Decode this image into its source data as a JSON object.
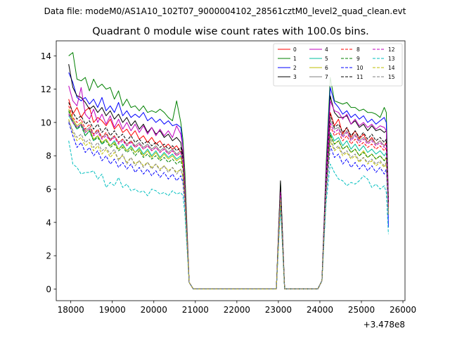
{
  "figure": {
    "suptitle": "Data file: modeM0/AS1A10_102T07_9000004102_28561cztM0_level2_quad_clean.evt"
  },
  "chart_data": {
    "type": "line",
    "title": "Quadrant 0 module wise count rates with 100.0s bins.",
    "xlabel": "",
    "ylabel": "",
    "x_offset_label": "+3.478e8",
    "xlim": [
      17650,
      26050
    ],
    "ylim": [
      -0.7,
      14.9
    ],
    "xticks": [
      18000,
      19000,
      20000,
      21000,
      22000,
      23000,
      24000,
      25000,
      26000
    ],
    "yticks": [
      0,
      2,
      4,
      6,
      8,
      10,
      12,
      14
    ],
    "legend_location": "upper right",
    "legend_columns": 4,
    "x": [
      17950,
      18050,
      18150,
      18250,
      18350,
      18450,
      18550,
      18650,
      18750,
      18850,
      18950,
      19050,
      19150,
      19250,
      19350,
      19450,
      19550,
      19650,
      19750,
      19850,
      19950,
      20050,
      20150,
      20250,
      20350,
      20450,
      20550,
      20650,
      20700,
      20750,
      20850,
      20950,
      21050,
      22950,
      23050,
      23150,
      23250,
      23950,
      24050,
      24150,
      24250,
      24350,
      24450,
      24550,
      24650,
      24750,
      24850,
      24950,
      25050,
      25150,
      25250,
      25350,
      25450,
      25550,
      25600,
      25650
    ],
    "series": [
      {
        "name": "0",
        "color": "#ff0000",
        "style": "solid",
        "values": [
          11.4,
          10.5,
          10.9,
          10.3,
          10.7,
          10.9,
          10.0,
          10.3,
          10.1,
          9.8,
          10.2,
          9.6,
          9.9,
          9.4,
          9.6,
          9.2,
          9.5,
          9.0,
          9.2,
          8.8,
          9.1,
          8.7,
          8.9,
          8.5,
          8.7,
          8.4,
          8.6,
          8.2,
          8.4,
          6.5,
          0.4,
          0,
          0,
          0,
          5.8,
          0,
          0,
          0,
          0.5,
          6.5,
          10.6,
          9.8,
          10.2,
          9.3,
          9.7,
          9.1,
          9.5,
          9.0,
          9.3,
          8.8,
          9.1,
          8.7,
          8.9,
          8.6,
          8.8,
          5.2
        ]
      },
      {
        "name": "1",
        "color": "#008000",
        "style": "solid",
        "values": [
          14.0,
          14.2,
          12.6,
          12.5,
          12.7,
          11.9,
          12.6,
          12.1,
          12.3,
          12.0,
          12.1,
          11.4,
          11.9,
          11.0,
          11.4,
          10.9,
          11.0,
          10.7,
          11.0,
          10.6,
          10.7,
          10.6,
          10.8,
          10.6,
          10.3,
          10.1,
          11.3,
          10.0,
          9.0,
          7.0,
          0.4,
          0,
          0,
          0,
          6.4,
          0,
          0,
          0,
          0.5,
          7.5,
          12.7,
          11.3,
          11.2,
          11.1,
          11.2,
          10.9,
          10.9,
          10.7,
          10.8,
          10.6,
          10.6,
          10.5,
          10.3,
          10.9,
          10.6,
          5.5
        ]
      },
      {
        "name": "2",
        "color": "#0000ff",
        "style": "solid",
        "values": [
          13.0,
          12.4,
          11.5,
          11.3,
          11.5,
          11.1,
          11.4,
          10.9,
          11.5,
          10.7,
          11.0,
          10.6,
          11.2,
          10.4,
          10.7,
          10.3,
          10.5,
          10.3,
          10.6,
          10.1,
          10.3,
          10.0,
          10.2,
          9.9,
          10.1,
          9.8,
          9.9,
          9.7,
          8.5,
          6.0,
          0.4,
          0,
          0,
          0,
          6.0,
          0,
          0,
          0,
          0.5,
          7.0,
          12.1,
          11.2,
          10.9,
          10.5,
          10.7,
          10.3,
          10.5,
          10.2,
          10.4,
          10.0,
          10.2,
          9.9,
          10.1,
          10.3,
          10.0,
          3.7
        ]
      },
      {
        "name": "3",
        "color": "#000000",
        "style": "solid",
        "values": [
          13.5,
          12.1,
          11.6,
          11.5,
          11.2,
          10.8,
          11.0,
          10.6,
          10.9,
          10.4,
          10.7,
          10.2,
          10.5,
          10.0,
          10.3,
          9.8,
          10.1,
          9.6,
          9.9,
          9.4,
          9.7,
          9.3,
          9.5,
          9.1,
          9.3,
          8.9,
          9.1,
          8.8,
          8.0,
          6.2,
          0.4,
          0,
          0,
          0,
          6.5,
          0,
          0,
          0,
          0.5,
          7.0,
          11.6,
          10.6,
          10.3,
          10.3,
          10.4,
          9.9,
          10.1,
          9.7,
          9.9,
          9.5,
          9.8,
          9.5,
          9.6,
          9.4,
          9.5,
          5.2
        ]
      },
      {
        "name": "4",
        "color": "#bf00bf",
        "style": "solid",
        "values": [
          12.2,
          11.3,
          11.0,
          12.1,
          10.5,
          10.2,
          10.8,
          10.0,
          10.5,
          9.9,
          10.4,
          9.7,
          10.2,
          9.6,
          10.0,
          9.5,
          9.9,
          9.4,
          9.8,
          9.3,
          9.7,
          9.2,
          9.6,
          9.2,
          9.5,
          9.1,
          9.8,
          9.3,
          8.5,
          6.3,
          0.4,
          0,
          0,
          0,
          5.9,
          0,
          0,
          0,
          0.5,
          7.0,
          11.3,
          10.7,
          10.6,
          10.2,
          10.5,
          9.9,
          10.2,
          9.8,
          10.0,
          9.7,
          9.9,
          9.6,
          9.8,
          9.7,
          9.5,
          5.4
        ]
      },
      {
        "name": "5",
        "color": "#00bf9f",
        "style": "solid",
        "values": [
          10.4,
          10.0,
          9.6,
          9.9,
          9.2,
          9.5,
          8.9,
          9.2,
          8.7,
          9.0,
          8.6,
          8.9,
          8.4,
          8.7,
          8.3,
          8.6,
          8.2,
          8.5,
          8.1,
          8.4,
          8.0,
          8.3,
          7.9,
          8.2,
          7.9,
          8.1,
          7.8,
          8.0,
          7.5,
          5.8,
          0.4,
          0,
          0,
          0,
          5.6,
          0,
          0,
          0,
          0.5,
          6.2,
          9.4,
          8.9,
          9.1,
          8.6,
          8.9,
          8.4,
          8.7,
          8.3,
          8.6,
          8.2,
          8.4,
          8.1,
          8.3,
          8.0,
          8.2,
          4.8
        ]
      },
      {
        "name": "6",
        "color": "#bfbf00",
        "style": "solid",
        "values": [
          10.8,
          10.2,
          9.8,
          10.0,
          9.4,
          9.6,
          9.0,
          9.2,
          8.8,
          9.0,
          8.6,
          8.8,
          8.4,
          8.6,
          8.3,
          8.5,
          8.2,
          8.4,
          8.0,
          8.3,
          7.9,
          8.2,
          7.8,
          8.1,
          7.8,
          8.0,
          7.7,
          7.9,
          7.4,
          5.7,
          0.4,
          0,
          0,
          0,
          5.5,
          0,
          0,
          0,
          0.5,
          6.0,
          9.2,
          8.7,
          8.9,
          8.4,
          8.6,
          8.2,
          8.4,
          8.0,
          8.3,
          7.9,
          8.1,
          7.8,
          8.0,
          7.7,
          7.9,
          4.7
        ]
      },
      {
        "name": "7",
        "color": "#808080",
        "style": "solid",
        "values": [
          10.6,
          10.1,
          9.7,
          9.9,
          9.5,
          9.7,
          9.3,
          9.5,
          9.1,
          9.3,
          9.0,
          9.2,
          8.8,
          9.0,
          8.7,
          8.9,
          8.6,
          8.8,
          8.5,
          8.7,
          8.4,
          8.6,
          8.3,
          8.5,
          8.2,
          8.4,
          8.1,
          8.3,
          7.8,
          6.0,
          0.4,
          0,
          0,
          0,
          5.9,
          0,
          0,
          0,
          0.5,
          6.5,
          10.2,
          9.6,
          9.7,
          9.2,
          9.5,
          9.0,
          9.3,
          8.9,
          9.1,
          8.8,
          9.0,
          8.7,
          8.9,
          8.6,
          8.7,
          5.0
        ]
      },
      {
        "name": "8",
        "color": "#ff0000",
        "style": "dashed",
        "values": [
          11.0,
          10.3,
          10.0,
          10.2,
          9.6,
          9.9,
          9.3,
          9.6,
          9.1,
          9.4,
          8.9,
          9.2,
          8.8,
          9.0,
          8.6,
          8.9,
          8.5,
          8.7,
          8.4,
          8.6,
          8.3,
          8.5,
          8.2,
          8.4,
          8.1,
          8.3,
          8.0,
          8.2,
          7.6,
          5.9,
          0.4,
          0,
          0,
          0,
          5.7,
          0,
          0,
          0,
          0.5,
          6.3,
          9.8,
          9.2,
          9.4,
          8.9,
          9.2,
          8.7,
          9.0,
          8.6,
          8.8,
          8.5,
          8.7,
          8.4,
          8.6,
          8.3,
          8.5,
          4.9
        ]
      },
      {
        "name": "9",
        "color": "#008000",
        "style": "dashed",
        "values": [
          10.7,
          10.0,
          9.6,
          9.8,
          9.2,
          9.5,
          8.9,
          9.1,
          8.7,
          8.9,
          8.5,
          8.7,
          8.3,
          8.5,
          8.2,
          8.4,
          8.0,
          8.3,
          7.9,
          8.1,
          7.8,
          8.0,
          7.7,
          7.9,
          7.6,
          7.8,
          7.5,
          7.7,
          7.2,
          5.6,
          0.4,
          0,
          0,
          0,
          5.4,
          0,
          0,
          0,
          0.5,
          6.0,
          9.3,
          8.7,
          8.9,
          8.4,
          8.6,
          8.2,
          8.4,
          8.0,
          8.2,
          7.9,
          8.1,
          7.8,
          8.0,
          7.7,
          7.9,
          4.6
        ]
      },
      {
        "name": "10",
        "color": "#0000ff",
        "style": "dashed",
        "values": [
          10.0,
          9.2,
          8.5,
          8.8,
          8.2,
          8.5,
          8.0,
          8.3,
          7.7,
          8.0,
          7.5,
          7.8,
          7.3,
          7.6,
          7.2,
          7.5,
          7.0,
          7.3,
          6.9,
          7.2,
          6.8,
          7.1,
          6.7,
          7.0,
          6.6,
          6.9,
          6.5,
          6.8,
          6.4,
          5.0,
          0.4,
          0,
          0,
          0,
          5.2,
          0,
          0,
          0,
          0.5,
          5.6,
          8.6,
          7.9,
          8.1,
          7.5,
          7.8,
          7.3,
          7.6,
          7.2,
          7.5,
          7.1,
          7.4,
          7.0,
          7.3,
          6.9,
          7.2,
          4.3
        ]
      },
      {
        "name": "11",
        "color": "#000000",
        "style": "dashed",
        "values": [
          11.2,
          10.6,
          10.2,
          10.4,
          9.9,
          10.1,
          9.6,
          9.9,
          9.4,
          9.7,
          9.2,
          9.5,
          9.1,
          9.3,
          8.9,
          9.2,
          8.8,
          9.0,
          8.7,
          8.9,
          8.6,
          8.8,
          8.5,
          8.7,
          8.4,
          8.6,
          8.3,
          8.5,
          7.9,
          6.1,
          0.4,
          0,
          0,
          0,
          6.1,
          0,
          0,
          0,
          0.5,
          6.6,
          10.5,
          9.7,
          9.9,
          9.4,
          9.7,
          9.2,
          9.5,
          9.1,
          9.4,
          9.0,
          9.3,
          8.9,
          9.1,
          8.8,
          9.0,
          5.1
        ]
      },
      {
        "name": "12",
        "color": "#bf00bf",
        "style": "dashed",
        "values": [
          10.5,
          10.0,
          9.7,
          9.9,
          9.4,
          9.6,
          9.2,
          9.4,
          9.0,
          9.2,
          8.9,
          9.1,
          8.7,
          8.9,
          8.6,
          8.8,
          8.5,
          8.7,
          8.4,
          8.6,
          8.3,
          8.5,
          8.2,
          8.4,
          8.1,
          8.3,
          8.0,
          8.2,
          7.7,
          5.9,
          0.4,
          0,
          0,
          0,
          5.8,
          0,
          0,
          0,
          0.5,
          6.4,
          10.0,
          9.4,
          9.6,
          9.1,
          9.4,
          8.9,
          9.2,
          8.8,
          9.0,
          8.7,
          8.9,
          8.6,
          8.8,
          8.5,
          8.7,
          5.0
        ]
      },
      {
        "name": "13",
        "color": "#00bfbf",
        "style": "dashed",
        "values": [
          8.9,
          7.5,
          7.3,
          6.9,
          7.0,
          7.0,
          7.1,
          6.6,
          6.9,
          6.1,
          6.4,
          6.2,
          6.7,
          6.1,
          6.3,
          5.9,
          6.0,
          5.8,
          5.9,
          5.6,
          6.0,
          5.9,
          5.7,
          5.8,
          5.6,
          5.9,
          5.7,
          5.8,
          5.6,
          4.5,
          0.4,
          0,
          0,
          0,
          4.9,
          0,
          0,
          0,
          0.5,
          5.2,
          7.5,
          7.0,
          6.6,
          6.5,
          6.2,
          6.4,
          6.3,
          6.5,
          6.8,
          6.6,
          6.1,
          6.3,
          6.0,
          6.2,
          5.8,
          3.3
        ]
      },
      {
        "name": "14",
        "color": "#bfbf00",
        "style": "dashed",
        "values": [
          10.2,
          9.4,
          8.9,
          9.1,
          8.6,
          8.8,
          8.3,
          8.6,
          8.1,
          8.4,
          7.9,
          8.2,
          7.8,
          8.0,
          7.6,
          7.9,
          7.5,
          7.7,
          7.4,
          7.6,
          7.3,
          7.5,
          7.2,
          7.4,
          7.1,
          7.3,
          7.0,
          7.2,
          6.8,
          5.3,
          0.4,
          0,
          0,
          0,
          5.3,
          0,
          0,
          0,
          0.5,
          5.8,
          8.9,
          8.3,
          8.5,
          8.0,
          8.2,
          7.8,
          8.0,
          7.6,
          7.9,
          7.5,
          7.7,
          7.4,
          7.6,
          7.3,
          7.5,
          4.4
        ]
      },
      {
        "name": "15",
        "color": "#808080",
        "style": "dashed",
        "values": [
          10.1,
          9.5,
          9.1,
          9.3,
          8.8,
          9.0,
          8.5,
          8.8,
          8.3,
          8.5,
          8.1,
          8.4,
          7.7,
          8.1,
          7.5,
          7.9,
          7.4,
          7.7,
          7.3,
          7.6,
          7.2,
          7.5,
          7.1,
          7.4,
          7.0,
          7.3,
          6.9,
          7.2,
          6.7,
          5.2,
          0.4,
          0,
          0,
          0,
          5.5,
          0,
          0,
          0,
          0.5,
          5.9,
          9.1,
          8.4,
          8.6,
          8.1,
          8.3,
          7.9,
          8.1,
          7.7,
          7.9,
          7.6,
          7.8,
          7.5,
          7.7,
          7.4,
          7.6,
          4.5
        ]
      }
    ]
  }
}
